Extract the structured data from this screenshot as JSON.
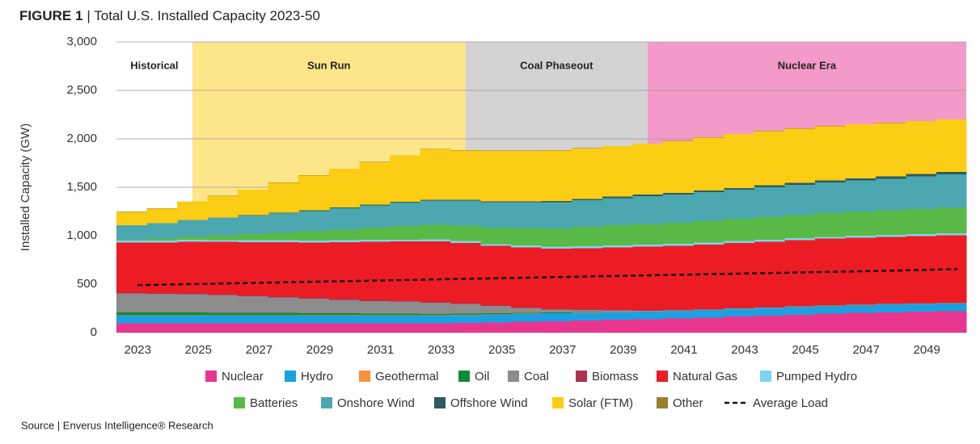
{
  "chart_data": {
    "type": "stacked-step-area",
    "title_label": "FIGURE 1",
    "title": "| Total U.S. Installed Capacity 2023-50",
    "ylabel": "Installed Capacity (GW)",
    "source": "Source | Enverus Intelligence® Research",
    "x": [
      2023,
      2024,
      2025,
      2026,
      2027,
      2028,
      2029,
      2030,
      2031,
      2032,
      2033,
      2034,
      2035,
      2036,
      2037,
      2038,
      2039,
      2040,
      2041,
      2042,
      2043,
      2044,
      2045,
      2046,
      2047,
      2048,
      2049,
      2050
    ],
    "xlim": [
      2022.3,
      2050.3
    ],
    "xticks": [
      2023,
      2025,
      2027,
      2029,
      2031,
      2033,
      2035,
      2037,
      2039,
      2041,
      2043,
      2045,
      2047,
      2049
    ],
    "ylim": [
      0,
      3000
    ],
    "yticks": [
      0,
      500,
      {
        "value": 1000,
        "label": "1,000"
      },
      {
        "value": 1500,
        "label": "1,500"
      },
      {
        "value": 2000,
        "label": "2,000"
      },
      {
        "value": 2500,
        "label": "2,500"
      },
      {
        "value": 3000,
        "label": "3,000"
      }
    ],
    "grid": true,
    "periods": [
      {
        "label": "Historical",
        "start": 2022.3,
        "end": 2024.8,
        "color": "#ffffff"
      },
      {
        "label": "Sun Run",
        "start": 2024.8,
        "end": 2033.8,
        "color": "#fde58a"
      },
      {
        "label": "Coal Phaseout",
        "start": 2033.8,
        "end": 2039.8,
        "color": "#d3d3d3"
      },
      {
        "label": "Nuclear Era",
        "start": 2039.8,
        "end": 2050.3,
        "color": "#f49ac8"
      }
    ],
    "series": [
      {
        "name": "Nuclear",
        "color": "#e8368f",
        "values": [
          95,
          95,
          95,
          95,
          95,
          95,
          95,
          95,
          95,
          95,
          95,
          100,
          105,
          112,
          118,
          125,
          132,
          138,
          146,
          155,
          165,
          175,
          185,
          195,
          203,
          210,
          215,
          220
        ]
      },
      {
        "name": "Hydro",
        "color": "#1ba1e2",
        "values": [
          80,
          80,
          80,
          80,
          80,
          80,
          80,
          80,
          80,
          80,
          80,
          80,
          80,
          80,
          80,
          80,
          80,
          80,
          80,
          80,
          80,
          80,
          80,
          80,
          80,
          80,
          80,
          80
        ]
      },
      {
        "name": "Geothermal",
        "color": "#f7913d",
        "values": [
          4,
          4,
          4,
          4,
          4,
          4,
          4,
          4,
          4,
          4,
          4,
          4,
          4,
          4,
          4,
          4,
          4,
          4,
          4,
          4,
          4,
          4,
          4,
          4,
          4,
          4,
          4,
          4
        ]
      },
      {
        "name": "Oil",
        "color": "#0f8a3c",
        "values": [
          30,
          30,
          28,
          27,
          26,
          24,
          22,
          20,
          18,
          16,
          14,
          12,
          10,
          8,
          5,
          3,
          2,
          0,
          0,
          0,
          0,
          0,
          0,
          0,
          0,
          0,
          0,
          0
        ]
      },
      {
        "name": "Coal",
        "color": "#8c8c8c",
        "values": [
          195,
          190,
          190,
          180,
          170,
          160,
          150,
          140,
          130,
          125,
          115,
          100,
          75,
          50,
          30,
          20,
          10,
          5,
          0,
          0,
          0,
          0,
          0,
          0,
          0,
          0,
          0,
          0
        ]
      },
      {
        "name": "Biomass",
        "color": "#b03050",
        "values": [
          10,
          10,
          10,
          10,
          10,
          10,
          10,
          10,
          10,
          10,
          10,
          10,
          10,
          10,
          10,
          10,
          10,
          10,
          10,
          10,
          10,
          10,
          10,
          10,
          10,
          10,
          10,
          10
        ]
      },
      {
        "name": "Natural Gas",
        "color": "#ec1c24",
        "values": [
          515,
          520,
          530,
          540,
          550,
          560,
          570,
          585,
          600,
          610,
          625,
          620,
          610,
          615,
          620,
          630,
          640,
          650,
          655,
          660,
          665,
          670,
          675,
          680,
          683,
          685,
          688,
          690
        ]
      },
      {
        "name": "Pumped Hydro",
        "color": "#7fd3f0",
        "values": [
          20,
          20,
          20,
          20,
          20,
          20,
          20,
          20,
          20,
          20,
          20,
          20,
          20,
          20,
          20,
          20,
          20,
          20,
          20,
          20,
          20,
          20,
          20,
          20,
          20,
          20,
          20,
          20
        ]
      },
      {
        "name": "Batteries",
        "color": "#58b947",
        "values": [
          10,
          20,
          35,
          50,
          65,
          80,
          95,
          110,
          125,
          140,
          150,
          160,
          170,
          180,
          190,
          200,
          210,
          215,
          220,
          225,
          230,
          235,
          240,
          245,
          250,
          255,
          260,
          265
        ]
      },
      {
        "name": "Onshore Wind",
        "color": "#4ba6b0",
        "values": [
          150,
          160,
          170,
          180,
          190,
          200,
          210,
          220,
          230,
          240,
          250,
          255,
          260,
          265,
          270,
          275,
          280,
          285,
          290,
          295,
          300,
          305,
          310,
          315,
          320,
          325,
          335,
          345
        ]
      },
      {
        "name": "Offshore Wind",
        "color": "#2e5b5e",
        "values": [
          0,
          0,
          1,
          2,
          3,
          4,
          5,
          6,
          7,
          8,
          9,
          10,
          11,
          12,
          13,
          14,
          15,
          16,
          17,
          18,
          19,
          20,
          21,
          22,
          23,
          24,
          25,
          25
        ]
      },
      {
        "name": "Solar (FTM)",
        "color": "#fbcd14",
        "values": [
          137,
          150,
          190,
          220,
          260,
          310,
          360,
          400,
          440,
          480,
          520,
          510,
          520,
          520,
          520,
          520,
          520,
          525,
          535,
          545,
          555,
          560,
          560,
          560,
          555,
          550,
          545,
          540
        ]
      },
      {
        "name": "Other",
        "color": "#9b7e2a",
        "values": [
          3,
          3,
          3,
          3,
          3,
          3,
          3,
          3,
          3,
          3,
          3,
          3,
          3,
          3,
          3,
          3,
          3,
          3,
          3,
          3,
          3,
          3,
          3,
          3,
          3,
          3,
          3,
          3
        ]
      }
    ],
    "line": {
      "name": "Average Load",
      "color": "#111111",
      "values": [
        490,
        496,
        502,
        508,
        514,
        520,
        526,
        532,
        538,
        544,
        550,
        556,
        562,
        568,
        574,
        580,
        586,
        592,
        598,
        604,
        610,
        616,
        622,
        628,
        634,
        640,
        648,
        655
      ]
    }
  }
}
